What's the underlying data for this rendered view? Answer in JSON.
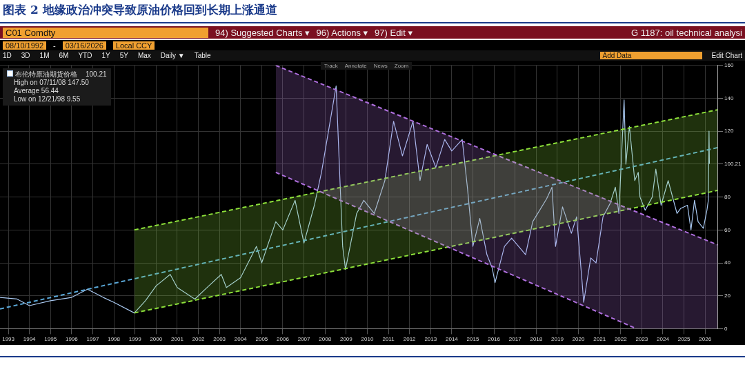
{
  "chart_data": {
    "type": "line",
    "title": "图表 2 地缘政治冲突导致原油价格回到长期上涨通道",
    "xlim": [
      "1992-08-10",
      "2026-08"
    ],
    "xticks": [
      "1993",
      "1994",
      "1995",
      "1996",
      "1997",
      "1998",
      "1999",
      "2000",
      "2001",
      "2002",
      "2003",
      "2004",
      "2005",
      "2006",
      "2007",
      "2008",
      "2009",
      "2010",
      "2011",
      "2012",
      "2013",
      "2014",
      "2015",
      "2016",
      "2017",
      "2018",
      "2019",
      "2020",
      "2021",
      "2022",
      "2023",
      "2024",
      "2025",
      "2026"
    ],
    "ylim": [
      0,
      160
    ],
    "yticks": [
      0,
      20,
      40,
      60,
      80,
      {
        "value": 100.21,
        "label": "100.21"
      },
      120,
      140,
      160
    ],
    "grid": true,
    "legend": "top left",
    "series": [
      {
        "color": "#b070e0",
        "x": [
          "2005-09",
          "2022-10",
          "2026-08"
        ],
        "values": [
          null,
          null,
          null
        ],
        "upper": [
          160,
          71,
          51
        ],
        "lower": [
          95,
          0,
          0
        ]
      },
      {
        "color": "#8de03a",
        "x": [
          "1998-12-21",
          "2026-08"
        ],
        "values": [
          null,
          null
        ],
        "upper": [
          60,
          133
        ],
        "lower": [
          9.55,
          84
        ]
      },
      {
        "color": "#b070e0",
        "line_style": "dashed",
        "x": [
          "2005-09",
          "2026-08"
        ],
        "values": [
          160,
          51
        ]
      },
      {
        "color": "#b070e0",
        "line_style": "dashed",
        "x": [
          "2005-09",
          "2022-10"
        ],
        "values": [
          95,
          0
        ]
      },
      {
        "color": "#8de03a",
        "line_style": "dashed",
        "x": [
          "1998-12-21",
          "2026-08"
        ],
        "values": [
          60,
          133
        ]
      },
      {
        "color": "#8de03a",
        "line_style": "dashed",
        "x": [
          "1998-12-21",
          "2026-08"
        ],
        "values": [
          9.55,
          84
        ]
      },
      {
        "color": "#5aa8d8",
        "line_style": "dashed",
        "x": [
          "1992-08-10",
          "2026-08"
        ],
        "values": [
          12,
          110
        ]
      },
      {
        "name": "布伦特原油期货价格",
        "color": "#a8c8f0",
        "line_style": "solid",
        "x": [
          "1992-08-10",
          "1993-06",
          "1994-01",
          "1995-01",
          "1996-01",
          "1996-10",
          "1997-07",
          "1998-01",
          "1998-12-21",
          "1999-07",
          "2000-01",
          "2000-09",
          "2001-01",
          "2001-11",
          "2002-07",
          "2003-02",
          "2003-05",
          "2004-01",
          "2004-10",
          "2005-01",
          "2005-09",
          "2006-01",
          "2006-08",
          "2007-01",
          "2007-07",
          "2007-11",
          "2008-07-11",
          "2008-11",
          "2008-12-20",
          "2009-07",
          "2009-11",
          "2010-05",
          "2010-11",
          "2011-04",
          "2011-09",
          "2012-03",
          "2012-07",
          "2012-11",
          "2013-04",
          "2013-09",
          "2014-01",
          "2014-07",
          "2014-10",
          "2015-01",
          "2015-05",
          "2015-09",
          "2015-12",
          "2016-01-20",
          "2016-07",
          "2016-11",
          "2017-07",
          "2017-11",
          "2018-07",
          "2018-10",
          "2018-12",
          "2019-04",
          "2019-09",
          "2019-12",
          "2020-03",
          "2020-04",
          "2020-08",
          "2020-11",
          "2021-03",
          "2021-07",
          "2021-10",
          "2021-12",
          "2022-03",
          "2022-04",
          "2022-06",
          "2022-09",
          "2022-11",
          "2022-12",
          "2023-03",
          "2023-07",
          "2023-09",
          "2023-12",
          "2024-04",
          "2024-09",
          "2024-11",
          "2025-03",
          "2025-05",
          "2025-07",
          "2025-09",
          "2025-12",
          "2026-02-01",
          "2026-02-25",
          "2026-03-09",
          "2026-03-16"
        ],
        "values": [
          19,
          18,
          14,
          17,
          19,
          24,
          19,
          16,
          9.55,
          17,
          26,
          33,
          25,
          18,
          26,
          33,
          25,
          31,
          50,
          40,
          65,
          60,
          78,
          52,
          75,
          95,
          147.5,
          50,
          36,
          70,
          78,
          70,
          90,
          126,
          105,
          126,
          90,
          112,
          98,
          115,
          108,
          115,
          85,
          50,
          67,
          45,
          37,
          28,
          50,
          55,
          45,
          65,
          79,
          86,
          50,
          74,
          58,
          68,
          30,
          16,
          43,
          40,
          68,
          76,
          86,
          70,
          139,
          100,
          123,
          90,
          95,
          80,
          72,
          80,
          97,
          75,
          90,
          70,
          73,
          75,
          60,
          78,
          65,
          61,
          72,
          78,
          120,
          100.21
        ]
      }
    ],
    "annotations": [
      "C01 Comdty",
      "94) Suggested Charts ▾",
      "96) Actions ▾",
      "97) Edit ▾",
      "G 1187: oil technical analysi",
      "08/10/1992",
      "-",
      "03/16/2026",
      "Local CCY",
      "1D",
      "3D",
      "1M",
      "6M",
      "YTD",
      "1Y",
      "5Y",
      "Max",
      "Daily ▼",
      "Table",
      "Add Data",
      "Edit Chart",
      "Track",
      "Annotate",
      "News",
      "Zoom",
      "100.21",
      "High on 07/11/08 147.50",
      "Average 56.44",
      "Low on 12/21/98 9.55"
    ]
  }
}
